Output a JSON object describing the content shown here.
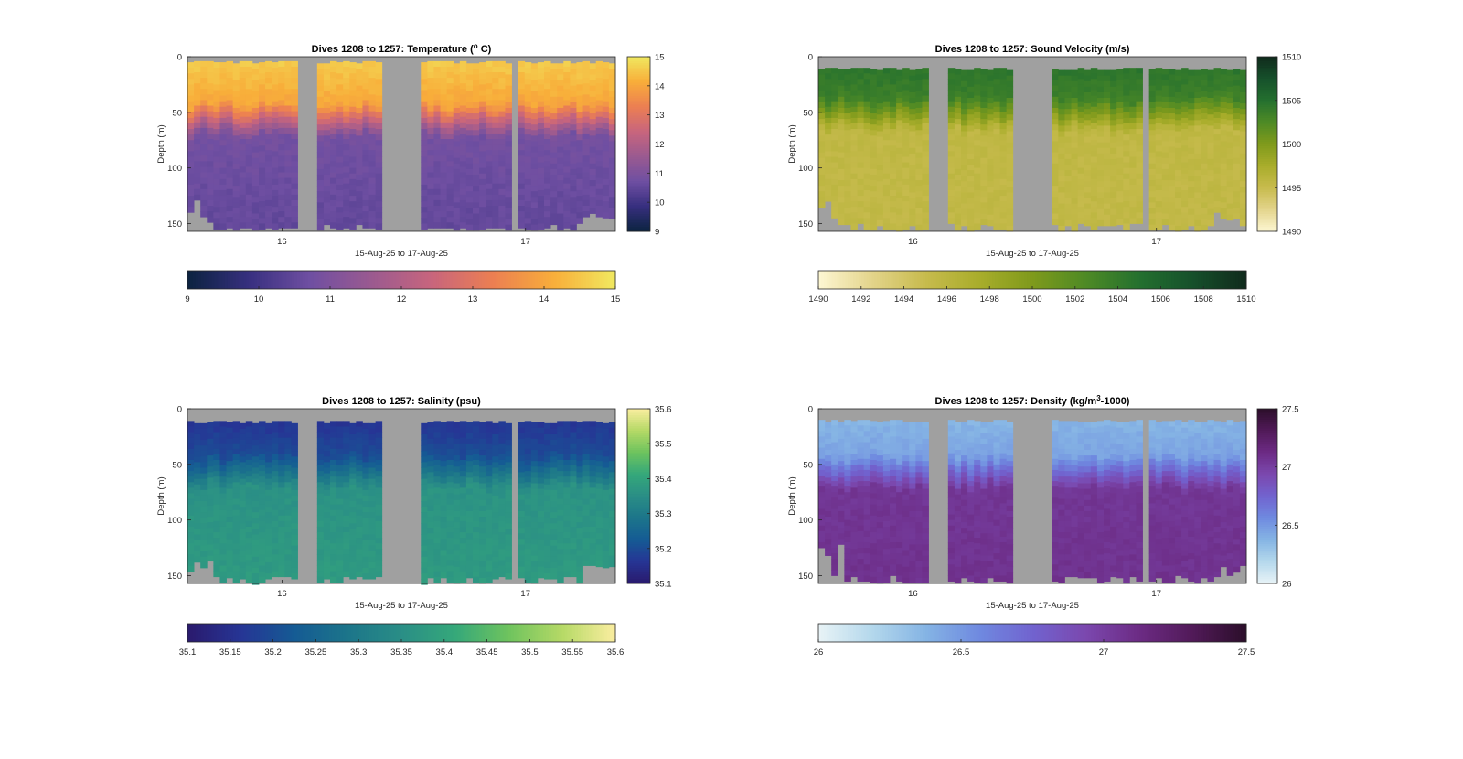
{
  "chart_data": [
    {
      "type": "heatmap",
      "title": "Dives 1208 to 1257: Temperature (",
      "title_sup": "o",
      "title_tail": " C)",
      "xlabel": "15-Aug-25 to 17-Aug-25",
      "ylabel": "Depth (m)",
      "xticklabels": [
        "16",
        "17"
      ],
      "yticks": [
        0,
        50,
        100,
        150
      ],
      "ylim": [
        0,
        157
      ],
      "colormap": "thermal",
      "colors": [
        "#0b2340",
        "#372f7f",
        "#6f4fa2",
        "#9a5a90",
        "#c8657d",
        "#ec7f52",
        "#f8ae3a",
        "#f0e960"
      ],
      "clim": [
        9,
        15
      ],
      "colorbar_ticks": [
        "15",
        "14",
        "13",
        "12",
        "11",
        "10",
        "9"
      ],
      "hcolorbar_ticks": [
        "9",
        "10",
        "11",
        "12",
        "13",
        "14",
        "15"
      ],
      "profile": {
        "surface": 14.6,
        "thermocline_top": 14.0,
        "thermocline_depth": 55,
        "deep": 10.8,
        "bottom": 10.5
      },
      "surface_gap_m": 4,
      "gaps": [
        "no data between dive groups"
      ]
    },
    {
      "type": "heatmap",
      "title": "Dives 1208 to 1257: Sound Velocity (m/s)",
      "title_sup": "",
      "title_tail": "",
      "xlabel": "15-Aug-25 to 17-Aug-25",
      "ylabel": "Depth (m)",
      "xticklabels": [
        "16",
        "17"
      ],
      "yticks": [
        0,
        50,
        100,
        150
      ],
      "ylim": [
        0,
        157
      ],
      "colormap": "speed",
      "colors": [
        "#fdf7d3",
        "#e3d48b",
        "#c7bb4d",
        "#a9ad2b",
        "#7f9a1c",
        "#4e8a25",
        "#24702f",
        "#16502b",
        "#102a1c"
      ],
      "clim": [
        1490,
        1510
      ],
      "colorbar_ticks": [
        "1510",
        "1505",
        "1500",
        "1495",
        "1490"
      ],
      "hcolorbar_ticks": [
        "1490",
        "1492",
        "1494",
        "1496",
        "1498",
        "1500",
        "1502",
        "1504",
        "1506",
        "1508",
        "1510"
      ],
      "profile": {
        "surface": 1504.8,
        "thermocline_top": 1503.5,
        "thermocline_depth": 50,
        "deep": 1495.6,
        "bottom": 1495.4
      },
      "surface_gap_m": 10,
      "gaps": [
        "no data between dive groups"
      ]
    },
    {
      "type": "heatmap",
      "title": "Dives 1208 to 1257: Salinity (psu)",
      "title_sup": "",
      "title_tail": "",
      "xlabel": "15-Aug-25 to 17-Aug-25",
      "ylabel": "Depth (m)",
      "xticklabels": [
        "16",
        "17"
      ],
      "yticks": [
        0,
        50,
        100,
        150
      ],
      "ylim": [
        0,
        157
      ],
      "colormap": "haline",
      "colors": [
        "#2a1a6d",
        "#263595",
        "#155b94",
        "#1c758a",
        "#2a8e86",
        "#35a87a",
        "#6ec35e",
        "#b5d966",
        "#fbeea0"
      ],
      "clim": [
        35.1,
        35.6
      ],
      "colorbar_ticks": [
        "35.6",
        "35.5",
        "35.4",
        "35.3",
        "35.2",
        "35.1"
      ],
      "hcolorbar_ticks": [
        "35.1",
        "35.15",
        "35.2",
        "35.25",
        "35.3",
        "35.35",
        "35.4",
        "35.45",
        "35.5",
        "35.55",
        "35.6"
      ],
      "profile": {
        "surface": 35.15,
        "thermocline_top": 35.2,
        "thermocline_depth": 55,
        "deep": 35.36,
        "bottom": 35.38
      },
      "surface_gap_m": 11,
      "gaps": [
        "no data between dive groups"
      ]
    },
    {
      "type": "heatmap",
      "title": "Dives 1208 to 1257: Density (kg/m",
      "title_sup": "3",
      "title_tail": "-1000)",
      "xlabel": "15-Aug-25 to 17-Aug-25",
      "ylabel": "Depth (m)",
      "xticklabels": [
        "16",
        "17"
      ],
      "yticks": [
        0,
        50,
        100,
        150
      ],
      "ylim": [
        0,
        157
      ],
      "colormap": "dense",
      "colors": [
        "#e8f3f6",
        "#b4d8ec",
        "#85b4e4",
        "#6f8ae0",
        "#7163cf",
        "#7b48ae",
        "#6c2b84",
        "#511a58",
        "#2b0e2a"
      ],
      "clim": [
        26,
        27.5
      ],
      "colorbar_ticks": [
        "27.5",
        "27",
        "26.5",
        "26"
      ],
      "hcolorbar_ticks": [
        "26",
        "26.5",
        "27",
        "27.5"
      ],
      "profile": {
        "surface": 26.35,
        "thermocline_top": 26.45,
        "thermocline_depth": 55,
        "deep": 27.05,
        "bottom": 27.08
      },
      "surface_gap_m": 10,
      "gaps": [
        "no data between dive groups"
      ]
    }
  ]
}
